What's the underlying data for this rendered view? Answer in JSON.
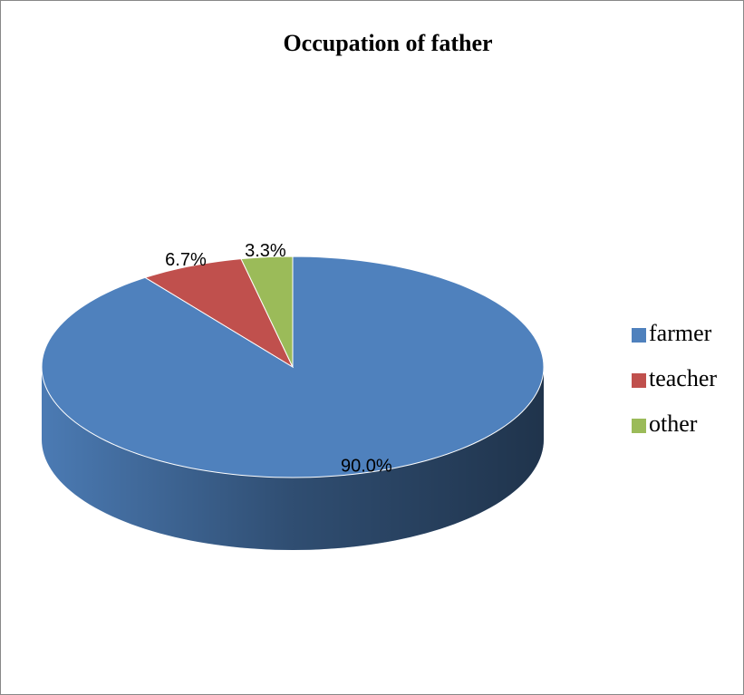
{
  "chart_data": {
    "type": "pie",
    "title": "Occupation of father",
    "categories": [
      "farmer",
      "teacher",
      "other"
    ],
    "values": [
      90.0,
      6.7,
      3.3
    ],
    "value_labels": [
      "90.0%",
      "6.7%",
      "3.3%"
    ],
    "colors": [
      "#4f81bd",
      "#c0504d",
      "#9bbb59"
    ],
    "legend": "right"
  }
}
